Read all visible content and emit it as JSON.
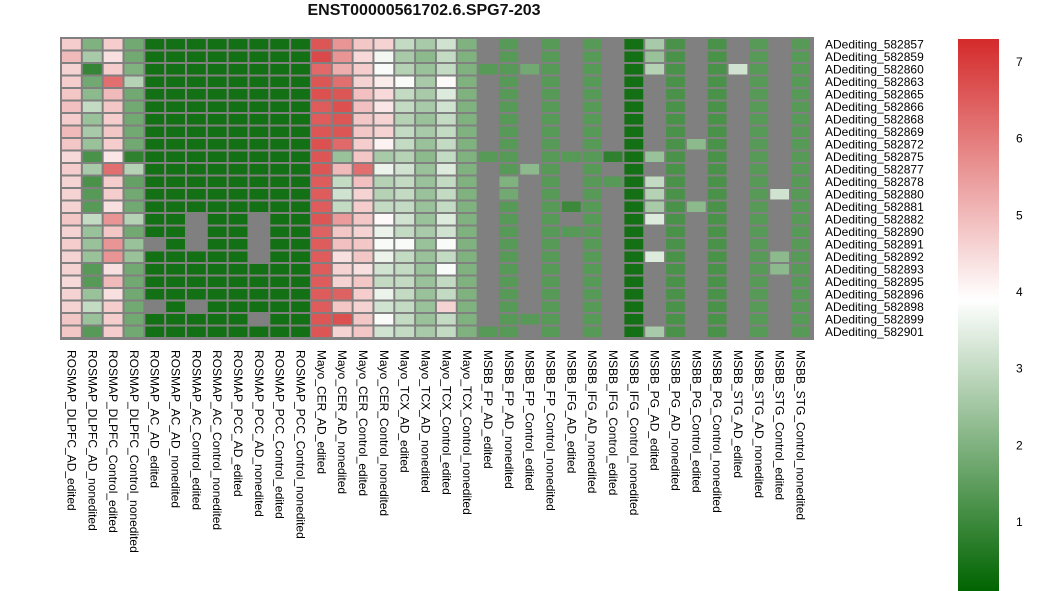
{
  "chart_data": {
    "type": "heatmap",
    "title": "ENST00000561702.6.SPG7-203",
    "rows": [
      "ADediting_582857",
      "ADediting_582859",
      "ADediting_582860",
      "ADediting_582863",
      "ADediting_582865",
      "ADediting_582866",
      "ADediting_582868",
      "ADediting_582869",
      "ADediting_582872",
      "ADediting_582875",
      "ADediting_582877",
      "ADediting_582878",
      "ADediting_582880",
      "ADediting_582881",
      "ADediting_582882",
      "ADediting_582890",
      "ADediting_582891",
      "ADediting_582892",
      "ADediting_582893",
      "ADediting_582895",
      "ADediting_582896",
      "ADediting_582898",
      "ADediting_582899",
      "ADediting_582901"
    ],
    "columns": [
      "ROSMAP_DLPFC_AD_edited",
      "ROSMAP_DLPFC_AD_nonedited",
      "ROSMAP_DLPFC_Control_edited",
      "ROSMAP_DLPFC_Control_nonedited",
      "ROSMAP_AC_AD_edited",
      "ROSMAP_AC_AD_nonedited",
      "ROSMAP_AC_Control_edited",
      "ROSMAP_AC_Control_nonedited",
      "ROSMAP_PCC_AD_edited",
      "ROSMAP_PCC_AD_nonedited",
      "ROSMAP_PCC_Control_edited",
      "ROSMAP_PCC_Control_nonedited",
      "Mayo_CER_AD_edited",
      "Mayo_CER_AD_nonedited",
      "Mayo_CER_Control_edited",
      "Mayo_CER_Control_nonedited",
      "Mayo_TCX_AD_edited",
      "Mayo_TCX_AD_nonedited",
      "Mayo_TCX_Control_edited",
      "Mayo_TCX_Control_nonedited",
      "MSBB_FP_AD_edited",
      "MSBB_FP_AD_nonedited",
      "MSBB_FP_Control_edited",
      "MSBB_FP_Control_nonedited",
      "MSBB_IFG_AD_edited",
      "MSBB_IFG_AD_nonedited",
      "MSBB_IFG_Control_edited",
      "MSBB_IFG_Control_nonedited",
      "MSBB_PG_AD_edited",
      "MSBB_PG_AD_nonedited",
      "MSBB_PG_Control_edited",
      "MSBB_PG_Control_nonedited",
      "MSBB_STG_AD_edited",
      "MSBB_STG_AD_nonedited",
      "MSBB_STG_Control_edited",
      "MSBB_STG_Control_nonedited"
    ],
    "values": [
      [
        4.7,
        2.0,
        4.7,
        1.8,
        0.4,
        0.4,
        0.4,
        0.4,
        0.4,
        0.4,
        0.4,
        0.4,
        6.6,
        5.6,
        4.8,
        4.6,
        3.0,
        2.6,
        3.2,
        2.0,
        null,
        1.4,
        null,
        1.4,
        null,
        1.4,
        null,
        0.4,
        2.6,
        1.2,
        null,
        1.2,
        null,
        1.4,
        null,
        1.4
      ],
      [
        5.0,
        2.6,
        4.4,
        1.8,
        0.4,
        0.4,
        0.4,
        0.4,
        0.4,
        0.4,
        0.4,
        0.4,
        6.8,
        5.6,
        4.5,
        3.7,
        2.6,
        2.2,
        3.0,
        2.0,
        null,
        1.4,
        null,
        1.4,
        null,
        1.4,
        null,
        0.4,
        2.4,
        1.2,
        null,
        1.2,
        null,
        1.4,
        null,
        1.4
      ],
      [
        4.6,
        0.9,
        4.7,
        2.0,
        0.4,
        0.4,
        0.4,
        0.4,
        0.4,
        0.4,
        0.4,
        0.4,
        6.3,
        5.2,
        4.7,
        3.8,
        2.8,
        2.4,
        3.0,
        2.0,
        1.4,
        1.4,
        1.8,
        1.4,
        null,
        1.4,
        null,
        0.4,
        2.8,
        1.2,
        null,
        1.2,
        3.2,
        1.4,
        null,
        1.4
      ],
      [
        4.7,
        1.8,
        6.2,
        2.8,
        0.4,
        0.4,
        0.4,
        0.4,
        0.4,
        0.4,
        0.4,
        0.4,
        6.6,
        6.2,
        4.6,
        4.2,
        3.8,
        2.6,
        4.0,
        2.0,
        null,
        1.4,
        null,
        1.4,
        null,
        1.4,
        null,
        0.4,
        null,
        1.2,
        null,
        1.2,
        null,
        1.4,
        null,
        1.4
      ],
      [
        4.8,
        2.2,
        5.0,
        1.8,
        0.4,
        0.4,
        0.4,
        0.4,
        0.4,
        0.4,
        0.4,
        0.4,
        6.7,
        6.6,
        4.9,
        4.5,
        3.0,
        2.6,
        3.4,
        2.0,
        null,
        1.4,
        null,
        1.4,
        null,
        1.4,
        null,
        0.4,
        null,
        1.2,
        null,
        1.2,
        null,
        1.4,
        null,
        1.4
      ],
      [
        4.9,
        3.0,
        4.8,
        1.8,
        0.4,
        0.4,
        0.4,
        0.4,
        0.4,
        0.4,
        0.4,
        0.4,
        6.5,
        6.7,
        4.9,
        4.3,
        3.0,
        2.6,
        3.2,
        2.0,
        null,
        1.4,
        null,
        1.4,
        null,
        1.4,
        null,
        0.4,
        null,
        1.2,
        null,
        1.2,
        null,
        1.4,
        null,
        1.4
      ],
      [
        4.7,
        2.4,
        4.7,
        1.8,
        0.4,
        0.4,
        0.4,
        0.4,
        0.4,
        0.4,
        0.4,
        0.4,
        6.5,
        6.6,
        4.8,
        4.6,
        2.8,
        2.4,
        3.0,
        2.0,
        null,
        1.4,
        null,
        1.4,
        null,
        1.4,
        null,
        0.4,
        null,
        1.2,
        null,
        1.2,
        null,
        1.4,
        null,
        1.4
      ],
      [
        5.0,
        2.6,
        4.8,
        1.8,
        0.4,
        0.4,
        0.4,
        0.4,
        0.4,
        0.4,
        0.4,
        0.4,
        6.6,
        6.6,
        4.8,
        4.6,
        3.0,
        2.6,
        3.0,
        2.0,
        null,
        1.4,
        null,
        1.4,
        null,
        1.4,
        null,
        0.4,
        null,
        1.2,
        null,
        1.2,
        null,
        1.4,
        null,
        1.4
      ],
      [
        4.8,
        2.4,
        4.7,
        1.8,
        0.4,
        0.4,
        0.4,
        0.4,
        0.4,
        0.4,
        0.4,
        0.4,
        6.7,
        6.3,
        4.7,
        4.1,
        3.0,
        2.4,
        3.0,
        2.0,
        null,
        1.4,
        null,
        1.4,
        null,
        1.4,
        null,
        0.4,
        null,
        1.2,
        2.2,
        1.2,
        null,
        1.4,
        null,
        1.4
      ],
      [
        4.5,
        1.2,
        4.3,
        0.8,
        0.4,
        0.4,
        0.4,
        0.4,
        0.4,
        0.4,
        0.4,
        0.4,
        6.6,
        2.4,
        4.8,
        2.6,
        2.8,
        2.2,
        3.0,
        2.0,
        1.4,
        1.4,
        null,
        1.4,
        1.4,
        1.4,
        0.8,
        0.4,
        2.4,
        1.2,
        null,
        1.2,
        null,
        1.4,
        null,
        1.4
      ],
      [
        4.7,
        2.6,
        6.2,
        2.8,
        0.4,
        0.4,
        0.4,
        0.4,
        0.4,
        0.4,
        0.4,
        0.4,
        6.6,
        5.0,
        6.2,
        3.6,
        3.2,
        2.4,
        3.4,
        2.0,
        null,
        1.4,
        2.2,
        1.4,
        null,
        1.4,
        null,
        0.4,
        null,
        1.2,
        null,
        1.2,
        null,
        1.4,
        null,
        1.4
      ],
      [
        4.6,
        1.2,
        4.7,
        1.6,
        0.4,
        0.4,
        0.4,
        0.4,
        0.4,
        0.4,
        0.4,
        0.4,
        6.5,
        3.0,
        4.9,
        2.8,
        3.0,
        2.4,
        3.0,
        2.0,
        null,
        2.0,
        null,
        1.4,
        null,
        1.4,
        1.4,
        0.4,
        3.0,
        1.2,
        null,
        1.2,
        null,
        1.4,
        null,
        1.4
      ],
      [
        4.6,
        1.4,
        4.7,
        1.8,
        0.4,
        0.4,
        0.4,
        0.4,
        0.4,
        0.4,
        0.4,
        0.4,
        6.5,
        3.2,
        4.6,
        2.8,
        3.0,
        2.4,
        3.0,
        2.0,
        null,
        1.8,
        null,
        1.4,
        null,
        1.4,
        null,
        0.4,
        2.8,
        1.2,
        null,
        1.2,
        null,
        1.4,
        3.2,
        1.4
      ],
      [
        4.6,
        1.4,
        4.4,
        1.8,
        0.4,
        0.4,
        0.4,
        0.4,
        0.4,
        0.4,
        0.4,
        0.4,
        6.5,
        3.0,
        4.7,
        3.0,
        3.0,
        2.4,
        3.0,
        2.0,
        null,
        1.4,
        null,
        1.4,
        1.0,
        1.4,
        null,
        0.4,
        2.6,
        1.2,
        2.2,
        1.2,
        null,
        1.4,
        null,
        1.4
      ],
      [
        4.8,
        3.0,
        5.6,
        2.8,
        0.4,
        0.4,
        null,
        0.4,
        0.4,
        null,
        0.4,
        0.4,
        6.6,
        5.5,
        4.8,
        4.0,
        3.2,
        2.4,
        3.4,
        2.0,
        null,
        1.4,
        null,
        1.4,
        null,
        1.4,
        null,
        0.4,
        3.4,
        1.2,
        null,
        1.2,
        null,
        1.4,
        null,
        1.4
      ],
      [
        4.6,
        2.4,
        4.8,
        1.8,
        0.4,
        0.4,
        null,
        0.4,
        0.4,
        null,
        0.4,
        0.4,
        6.4,
        4.8,
        4.6,
        3.6,
        3.0,
        2.6,
        3.2,
        2.0,
        null,
        1.4,
        null,
        1.4,
        1.4,
        1.4,
        null,
        0.4,
        null,
        1.2,
        null,
        1.2,
        null,
        1.4,
        null,
        1.4
      ],
      [
        4.7,
        2.4,
        5.6,
        2.4,
        null,
        0.4,
        null,
        0.4,
        0.4,
        null,
        0.4,
        0.4,
        6.5,
        4.9,
        4.8,
        3.8,
        3.8,
        2.4,
        3.8,
        2.0,
        null,
        1.4,
        null,
        1.4,
        null,
        1.4,
        null,
        0.4,
        null,
        1.2,
        null,
        1.2,
        null,
        1.4,
        null,
        1.4
      ],
      [
        4.6,
        2.4,
        5.6,
        2.4,
        0.4,
        0.4,
        0.4,
        0.4,
        0.4,
        null,
        0.4,
        0.4,
        6.5,
        4.4,
        4.8,
        3.6,
        3.0,
        2.4,
        3.0,
        2.0,
        null,
        1.4,
        null,
        1.4,
        null,
        1.4,
        null,
        0.4,
        3.4,
        1.2,
        null,
        1.2,
        null,
        1.4,
        2.2,
        1.4
      ],
      [
        4.6,
        1.4,
        4.4,
        1.8,
        0.4,
        0.4,
        0.4,
        0.4,
        0.4,
        0.4,
        0.4,
        0.4,
        6.5,
        4.6,
        4.4,
        3.2,
        3.0,
        2.4,
        3.8,
        2.0,
        null,
        1.4,
        null,
        1.4,
        null,
        1.4,
        null,
        0.4,
        null,
        1.2,
        null,
        1.2,
        null,
        1.4,
        2.2,
        1.4
      ],
      [
        4.5,
        1.4,
        5.0,
        1.8,
        0.4,
        0.4,
        0.4,
        0.4,
        0.4,
        0.4,
        0.4,
        0.4,
        6.5,
        4.6,
        4.8,
        3.0,
        3.0,
        2.4,
        3.0,
        2.0,
        null,
        1.4,
        null,
        1.4,
        null,
        1.4,
        null,
        0.4,
        null,
        1.2,
        null,
        1.2,
        null,
        1.4,
        null,
        1.4
      ],
      [
        4.6,
        2.4,
        4.4,
        1.8,
        0.4,
        0.4,
        0.4,
        0.4,
        0.4,
        0.4,
        0.4,
        0.4,
        6.5,
        6.4,
        4.7,
        3.6,
        3.0,
        2.4,
        3.0,
        2.0,
        null,
        1.4,
        null,
        1.4,
        null,
        1.4,
        null,
        0.4,
        null,
        1.2,
        null,
        1.2,
        null,
        1.4,
        null,
        1.4
      ],
      [
        4.6,
        3.0,
        4.7,
        1.8,
        null,
        0.4,
        null,
        0.4,
        0.4,
        0.4,
        0.4,
        0.4,
        6.5,
        4.8,
        4.6,
        3.2,
        3.0,
        2.4,
        4.6,
        2.0,
        null,
        1.4,
        null,
        1.4,
        null,
        1.4,
        null,
        0.4,
        null,
        1.2,
        null,
        1.2,
        null,
        1.4,
        null,
        1.4
      ],
      [
        4.8,
        2.4,
        4.7,
        1.8,
        0.4,
        0.4,
        0.4,
        0.4,
        0.4,
        null,
        0.4,
        0.4,
        6.6,
        6.7,
        4.8,
        3.8,
        3.0,
        2.4,
        3.0,
        2.0,
        null,
        1.4,
        1.4,
        1.4,
        null,
        1.4,
        null,
        0.4,
        null,
        1.2,
        null,
        1.2,
        null,
        1.4,
        null,
        1.4
      ],
      [
        4.8,
        1.4,
        4.7,
        1.8,
        0.4,
        0.4,
        0.4,
        0.4,
        0.4,
        0.4,
        0.4,
        0.4,
        6.6,
        4.6,
        4.8,
        3.2,
        3.0,
        2.6,
        3.0,
        2.0,
        1.4,
        1.4,
        null,
        1.4,
        null,
        1.4,
        null,
        0.4,
        2.6,
        1.2,
        null,
        1.2,
        null,
        1.4,
        null,
        1.4
      ]
    ],
    "missing_color": "#808080",
    "color_scale": {
      "min": 0.1,
      "max": 7.3,
      "low_color": "#006400",
      "mid_color": "#ffffff",
      "mid_value": 3.9,
      "high_color": "#d42a2a"
    },
    "colorbar_ticks": [
      "1",
      "2",
      "3",
      "4",
      "5",
      "6",
      "7"
    ],
    "legend": "right"
  }
}
